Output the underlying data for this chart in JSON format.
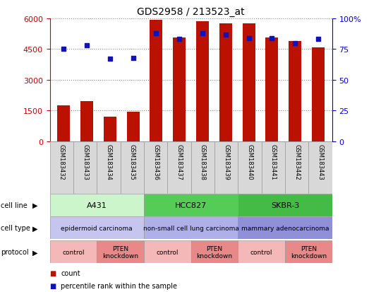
{
  "title": "GDS2958 / 213523_at",
  "samples": [
    "GSM183432",
    "GSM183433",
    "GSM183434",
    "GSM183435",
    "GSM183436",
    "GSM183437",
    "GSM183438",
    "GSM183439",
    "GSM183440",
    "GSM183441",
    "GSM183442",
    "GSM183443"
  ],
  "counts": [
    1750,
    1950,
    1200,
    1430,
    5920,
    5080,
    5870,
    5760,
    5760,
    5080,
    4900,
    4580
  ],
  "percentiles": [
    75,
    78,
    67,
    68,
    88,
    83,
    88,
    87,
    84,
    84,
    80,
    83
  ],
  "ylim_left": [
    0,
    6000
  ],
  "ylim_right": [
    0,
    100
  ],
  "yticks_left": [
    0,
    1500,
    3000,
    4500,
    6000
  ],
  "yticks_right": [
    0,
    25,
    50,
    75,
    100
  ],
  "cell_line_groups": [
    {
      "label": "A431",
      "start": 0,
      "end": 4,
      "color": "#ccf5cc"
    },
    {
      "label": "HCC827",
      "start": 4,
      "end": 8,
      "color": "#55cc55"
    },
    {
      "label": "SKBR-3",
      "start": 8,
      "end": 12,
      "color": "#44bb44"
    }
  ],
  "cell_type_groups": [
    {
      "label": "epidermoid carcinoma",
      "start": 0,
      "end": 4,
      "color": "#c5c5f0"
    },
    {
      "label": "non-small cell lung carcinoma",
      "start": 4,
      "end": 8,
      "color": "#b0b0e8"
    },
    {
      "label": "mammary adenocarcinoma",
      "start": 8,
      "end": 12,
      "color": "#9090d8"
    }
  ],
  "protocol_groups": [
    {
      "label": "control",
      "start": 0,
      "end": 2,
      "color": "#f5b8b8"
    },
    {
      "label": "PTEN\nknockdown",
      "start": 2,
      "end": 4,
      "color": "#e88888"
    },
    {
      "label": "control",
      "start": 4,
      "end": 6,
      "color": "#f5b8b8"
    },
    {
      "label": "PTEN\nknockdown",
      "start": 6,
      "end": 8,
      "color": "#e88888"
    },
    {
      "label": "control",
      "start": 8,
      "end": 10,
      "color": "#f5b8b8"
    },
    {
      "label": "PTEN\nknockdown",
      "start": 10,
      "end": 12,
      "color": "#e88888"
    }
  ],
  "bar_color": "#bb1100",
  "dot_color": "#1111bb",
  "left_axis_color": "#cc0000",
  "right_axis_color": "#0000cc",
  "background_color": "#ffffff",
  "grid_color": "#888888",
  "sample_box_color": "#d8d8d8"
}
